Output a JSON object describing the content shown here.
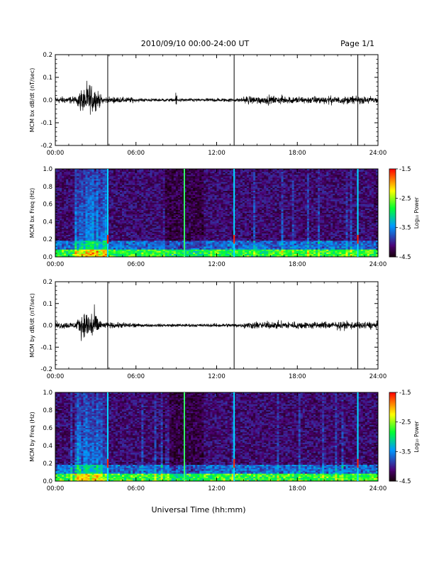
{
  "header": {
    "title": "2010/09/10  00:00-24:00 UT",
    "page": "Page 1/1"
  },
  "xlabel": "Universal Time (hh:mm)",
  "colorbar": {
    "label": "Log₁₀ Power",
    "ticks": [
      "-1.5",
      "-2.5",
      "-3.5",
      "-4.5"
    ],
    "range": [
      -4.5,
      -1.5
    ]
  },
  "chart_data": [
    {
      "type": "line",
      "ylabel": "MCM bx dB/dt (nT/sec)",
      "xlim": [
        0,
        24
      ],
      "ylim": [
        -0.2,
        0.2
      ],
      "x_ticks": [
        "00:00",
        "06:00",
        "12:00",
        "18:00",
        "24:00"
      ],
      "y_ticks": [
        "0.2",
        "0.1",
        "0.0",
        "-0.1",
        "-0.2"
      ],
      "spikes_hours": [
        3.9,
        13.3,
        22.5
      ],
      "envelope": {
        "quiet": 0.02,
        "active_peak": 0.12,
        "active_window_hours": [
          1.5,
          3.8
        ],
        "late_level": 0.03
      }
    },
    {
      "type": "heatmap",
      "ylabel": "MCM bx Freq (Hz)",
      "xlim": [
        0,
        24
      ],
      "ylim": [
        0.0,
        1.0
      ],
      "x_ticks": [
        "00:00",
        "06:00",
        "12:00",
        "18:00",
        "24:00"
      ],
      "y_ticks": [
        "1.0",
        "0.8",
        "0.6",
        "0.4",
        "0.2",
        "0.0"
      ],
      "vertical_lines_hours": [
        3.9,
        9.6,
        13.3,
        22.5
      ],
      "zlim": [
        -4.5,
        -1.5
      ]
    },
    {
      "type": "line",
      "ylabel": "MCM by dB/dt (nT/sec)",
      "xlim": [
        0,
        24
      ],
      "ylim": [
        -0.2,
        0.2
      ],
      "x_ticks": [
        "00:00",
        "06:00",
        "12:00",
        "18:00",
        "24:00"
      ],
      "y_ticks": [
        "0.2",
        "0.1",
        "0.0",
        "-0.1",
        "-0.2"
      ],
      "spikes_hours": [
        3.9,
        13.3,
        22.5
      ],
      "envelope": {
        "quiet": 0.02,
        "active_peak": 0.13,
        "active_window_hours": [
          1.5,
          3.8
        ],
        "late_level": 0.03
      }
    },
    {
      "type": "heatmap",
      "ylabel": "MCM by Freq (Hz)",
      "xlim": [
        0,
        24
      ],
      "ylim": [
        0.0,
        1.0
      ],
      "x_ticks": [
        "00:00",
        "06:00",
        "12:00",
        "18:00",
        "24:00"
      ],
      "y_ticks": [
        "1.0",
        "0.8",
        "0.6",
        "0.4",
        "0.2",
        "0.0"
      ],
      "vertical_lines_hours": [
        3.9,
        9.6,
        13.3,
        22.5
      ],
      "zlim": [
        -4.5,
        -1.5
      ]
    }
  ]
}
